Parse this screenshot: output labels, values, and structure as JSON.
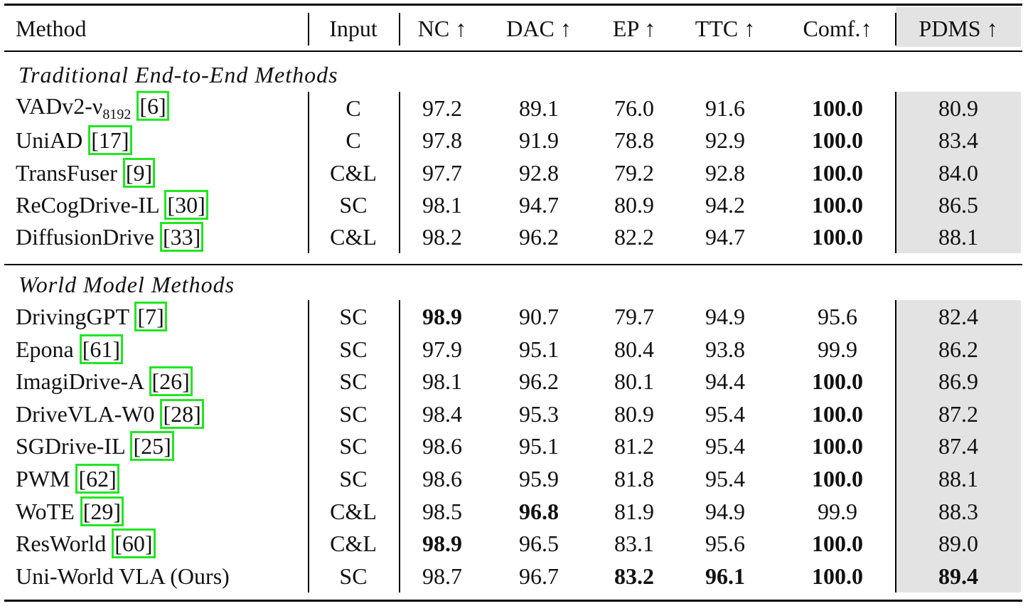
{
  "table": {
    "headers": [
      "Method",
      "Input",
      "NC ↑",
      "DAC ↑",
      "EP ↑",
      "TTC ↑",
      "Comf.↑",
      "PDMS ↑"
    ],
    "sections": [
      {
        "title": "Traditional End-to-End Methods",
        "rows": [
          {
            "method": "VADv2-ν",
            "sub": "8192",
            "cite": "[6]",
            "input": "C",
            "scores": [
              "97.2",
              "89.1",
              "76.0",
              "91.6",
              "100.0",
              "80.9"
            ],
            "bold": [
              4
            ]
          },
          {
            "method": "UniAD",
            "cite": "[17]",
            "input": "C",
            "scores": [
              "97.8",
              "91.9",
              "78.8",
              "92.9",
              "100.0",
              "83.4"
            ],
            "bold": [
              4
            ]
          },
          {
            "method": "TransFuser",
            "cite": "[9]",
            "input": "C&L",
            "scores": [
              "97.7",
              "92.8",
              "79.2",
              "92.8",
              "100.0",
              "84.0"
            ],
            "bold": [
              4
            ]
          },
          {
            "method": "ReCogDrive-IL",
            "cite": "[30]",
            "input": "SC",
            "scores": [
              "98.1",
              "94.7",
              "80.9",
              "94.2",
              "100.0",
              "86.5"
            ],
            "bold": [
              4
            ]
          },
          {
            "method": "DiffusionDrive",
            "cite": "[33]",
            "input": "C&L",
            "scores": [
              "98.2",
              "96.2",
              "82.2",
              "94.7",
              "100.0",
              "88.1"
            ],
            "bold": [
              4
            ]
          }
        ]
      },
      {
        "title": "World Model Methods",
        "rows": [
          {
            "method": "DrivingGPT",
            "cite": "[7]",
            "input": "SC",
            "scores": [
              "98.9",
              "90.7",
              "79.7",
              "94.9",
              "95.6",
              "82.4"
            ],
            "bold": [
              0
            ]
          },
          {
            "method": "Epona",
            "cite": "[61]",
            "input": "SC",
            "scores": [
              "97.9",
              "95.1",
              "80.4",
              "93.8",
              "99.9",
              "86.2"
            ]
          },
          {
            "method": "ImagiDrive-A",
            "cite": "[26]",
            "input": "SC",
            "scores": [
              "98.1",
              "96.2",
              "80.1",
              "94.4",
              "100.0",
              "86.9"
            ],
            "bold": [
              4
            ]
          },
          {
            "method": "DriveVLA-W0",
            "cite": "[28]",
            "input": "SC",
            "scores": [
              "98.4",
              "95.3",
              "80.9",
              "95.4",
              "100.0",
              "87.2"
            ],
            "bold": [
              4
            ]
          },
          {
            "method": "SGDrive-IL",
            "cite": "[25]",
            "input": "SC",
            "scores": [
              "98.6",
              "95.1",
              "81.2",
              "95.4",
              "100.0",
              "87.4"
            ],
            "bold": [
              4
            ]
          },
          {
            "method": "PWM",
            "cite": "[62]",
            "input": "SC",
            "scores": [
              "98.6",
              "95.9",
              "81.8",
              "95.4",
              "100.0",
              "88.1"
            ],
            "bold": [
              4
            ]
          },
          {
            "method": "WoTE",
            "cite": "[29]",
            "input": "C&L",
            "scores": [
              "98.5",
              "96.8",
              "81.9",
              "94.9",
              "99.9",
              "88.3"
            ],
            "bold": [
              1
            ]
          },
          {
            "method": "ResWorld",
            "cite": "[60]",
            "input": "C&L",
            "scores": [
              "98.9",
              "96.5",
              "83.1",
              "95.6",
              "100.0",
              "89.0"
            ],
            "bold": [
              0,
              4
            ]
          },
          {
            "method": "Uni-World VLA (Ours)",
            "input": "SC",
            "scores": [
              "98.7",
              "96.7",
              "83.2",
              "96.1",
              "100.0",
              "89.4"
            ],
            "bold": [
              2,
              3,
              4,
              5
            ]
          }
        ]
      }
    ]
  }
}
